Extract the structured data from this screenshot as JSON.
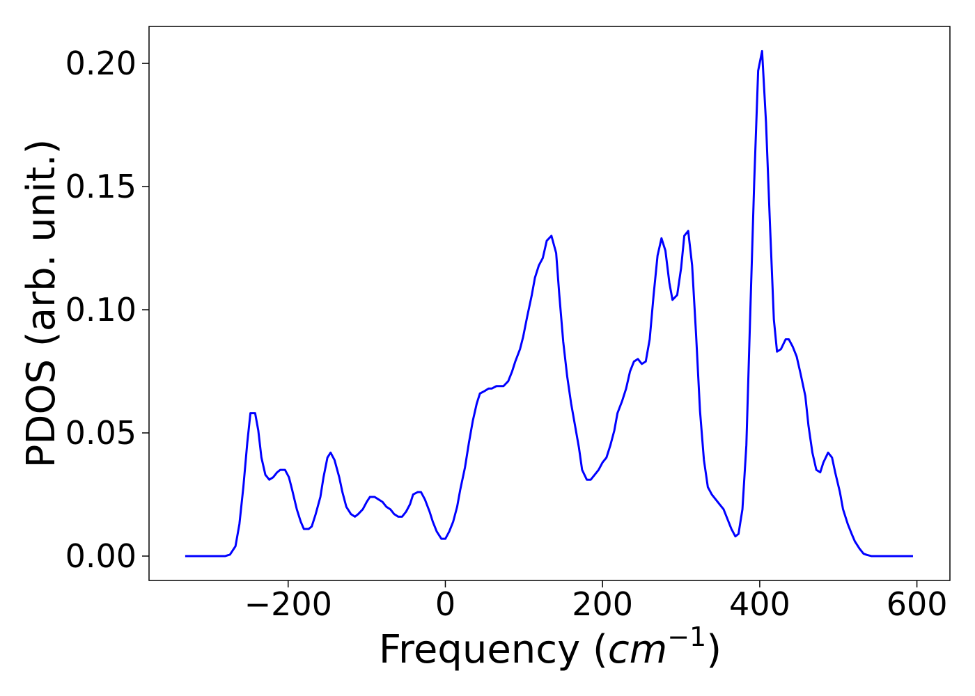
{
  "chart_data": {
    "type": "line",
    "xlabel": [
      "Frequency (",
      "cm",
      "−1",
      ")"
    ],
    "ylabel": "PDOS (arb. unit.)",
    "x": [
      -331,
      -280,
      -274,
      -267,
      -262,
      -257,
      -252,
      -248,
      -242,
      -238,
      -234,
      -229,
      -224,
      -219,
      -214,
      -210,
      -204,
      -199,
      -195,
      -189,
      -184,
      -180,
      -174,
      -170,
      -165,
      -159,
      -155,
      -150,
      -146,
      -141,
      -135,
      -131,
      -126,
      -120,
      -115,
      -111,
      -105,
      -100,
      -96,
      -90,
      -85,
      -80,
      -75,
      -70,
      -65,
      -60,
      -55,
      -50,
      -45,
      -41,
      -35,
      -31,
      -26,
      -20,
      -16,
      -11,
      -5,
      0,
      5,
      10,
      15,
      19,
      25,
      30,
      35,
      40,
      44,
      50,
      55,
      59,
      65,
      70,
      74,
      80,
      85,
      89,
      95,
      99,
      104,
      110,
      114,
      119,
      124,
      129,
      135,
      141,
      145,
      150,
      155,
      160,
      165,
      170,
      174,
      180,
      185,
      190,
      195,
      200,
      205,
      210,
      215,
      219,
      225,
      230,
      235,
      240,
      245,
      250,
      255,
      260,
      265,
      270,
      275,
      280,
      285,
      289,
      295,
      300,
      304,
      309,
      314,
      319,
      324,
      329,
      334,
      339,
      344,
      349,
      354,
      359,
      364,
      369,
      373,
      378,
      383,
      388,
      393,
      398,
      403,
      408,
      413,
      418,
      422,
      427,
      433,
      437,
      442,
      447,
      452,
      458,
      462,
      467,
      472,
      477,
      481,
      487,
      492,
      496,
      502,
      506,
      512,
      517,
      521,
      527,
      532,
      536,
      542,
      549,
      595
    ],
    "series": [
      {
        "color": "#0000ff",
        "values": [
          0,
          0,
          0.0006,
          0.004,
          0.013,
          0.028,
          0.046,
          0.058,
          0.058,
          0.051,
          0.04,
          0.033,
          0.031,
          0.032,
          0.034,
          0.035,
          0.035,
          0.032,
          0.027,
          0.019,
          0.014,
          0.011,
          0.011,
          0.012,
          0.017,
          0.024,
          0.032,
          0.04,
          0.042,
          0.039,
          0.032,
          0.026,
          0.02,
          0.017,
          0.016,
          0.017,
          0.019,
          0.022,
          0.024,
          0.024,
          0.023,
          0.022,
          0.02,
          0.019,
          0.017,
          0.016,
          0.016,
          0.018,
          0.021,
          0.025,
          0.026,
          0.026,
          0.023,
          0.018,
          0.014,
          0.01,
          0.007,
          0.007,
          0.01,
          0.014,
          0.02,
          0.027,
          0.036,
          0.046,
          0.055,
          0.062,
          0.066,
          0.067,
          0.068,
          0.068,
          0.069,
          0.069,
          0.069,
          0.071,
          0.075,
          0.079,
          0.084,
          0.089,
          0.097,
          0.106,
          0.113,
          0.118,
          0.121,
          0.128,
          0.13,
          0.123,
          0.106,
          0.087,
          0.073,
          0.062,
          0.053,
          0.044,
          0.035,
          0.031,
          0.031,
          0.033,
          0.035,
          0.038,
          0.04,
          0.045,
          0.051,
          0.058,
          0.063,
          0.068,
          0.075,
          0.079,
          0.08,
          0.078,
          0.079,
          0.088,
          0.106,
          0.122,
          0.129,
          0.124,
          0.111,
          0.104,
          0.106,
          0.117,
          0.13,
          0.132,
          0.118,
          0.09,
          0.059,
          0.039,
          0.028,
          0.025,
          0.023,
          0.021,
          0.019,
          0.015,
          0.011,
          0.008,
          0.009,
          0.019,
          0.045,
          0.099,
          0.152,
          0.197,
          0.205,
          0.176,
          0.135,
          0.096,
          0.083,
          0.084,
          0.088,
          0.088,
          0.085,
          0.081,
          0.074,
          0.065,
          0.053,
          0.042,
          0.035,
          0.034,
          0.038,
          0.042,
          0.04,
          0.034,
          0.026,
          0.019,
          0.013,
          0.009,
          0.006,
          0.003,
          0.001,
          0.0005,
          0,
          0,
          0
        ]
      }
    ],
    "xlim": [
      -377,
      642
    ],
    "ylim": [
      -0.0099,
      0.215
    ],
    "xticks": [
      {
        "value": -200,
        "label": "−200"
      },
      0,
      200,
      400,
      600
    ],
    "yticks": [
      {
        "value": 0,
        "label": "0.00"
      },
      {
        "value": 0.05,
        "label": "0.05"
      },
      {
        "value": 0.1,
        "label": "0.10"
      },
      {
        "value": 0.15,
        "label": "0.15"
      },
      {
        "value": 0.2,
        "label": "0.20"
      }
    ]
  }
}
